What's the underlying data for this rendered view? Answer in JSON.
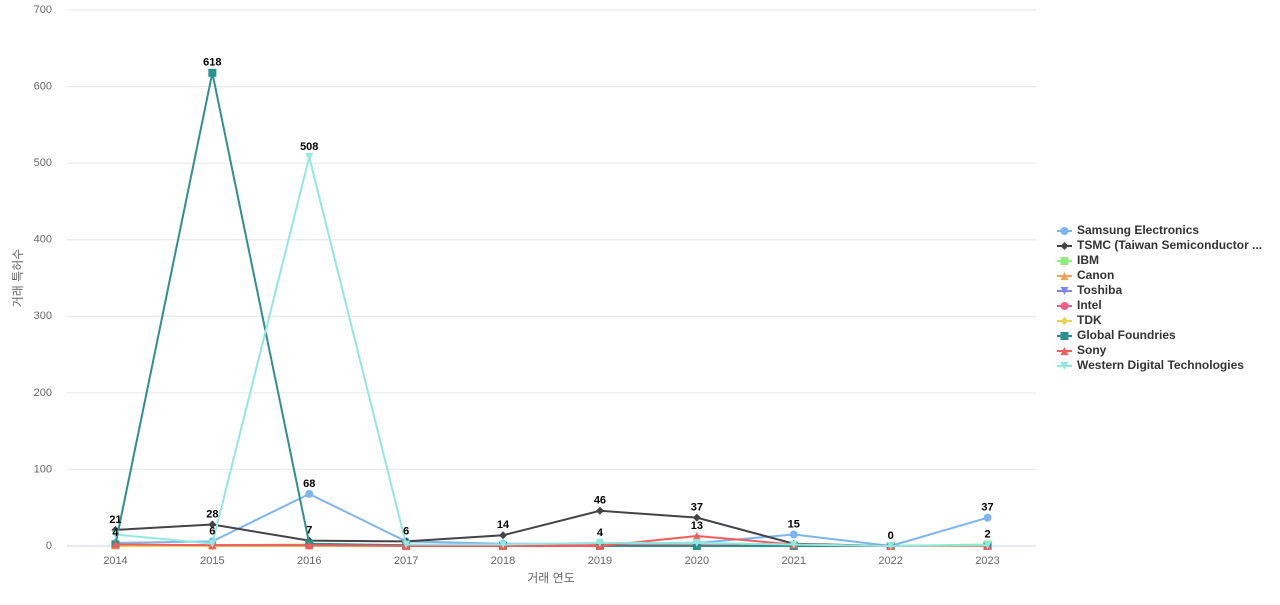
{
  "chart_data": {
    "type": "line",
    "x_label": "거래 연도",
    "y_label": "거래 특허수",
    "categories": [
      "2014",
      "2015",
      "2016",
      "2017",
      "2018",
      "2019",
      "2020",
      "2021",
      "2022",
      "2023"
    ],
    "ylim": [
      0,
      700
    ],
    "yticks": [
      0,
      100,
      200,
      300,
      400,
      500,
      600,
      700
    ],
    "grid": true,
    "legend": "right",
    "series": [
      {
        "name": "Samsung Electronics",
        "color": "#7cb5ec",
        "marker": "circle",
        "values": [
          4,
          6,
          68,
          6,
          3,
          3,
          4,
          15,
          0,
          37
        ]
      },
      {
        "name": "TSMC (Taiwan Semiconductor ...",
        "color": "#434348",
        "marker": "diamond",
        "values": [
          21,
          28,
          7,
          6,
          14,
          46,
          37,
          3,
          0,
          1
        ]
      },
      {
        "name": "IBM",
        "color": "#90ed7d",
        "marker": "square",
        "values": [
          1,
          1,
          2,
          1,
          1,
          1,
          1,
          1,
          0,
          2
        ]
      },
      {
        "name": "Canon",
        "color": "#f7a35c",
        "marker": "triangle",
        "values": [
          1,
          1,
          1,
          0,
          0,
          1,
          0,
          0,
          0,
          0
        ]
      },
      {
        "name": "Toshiba",
        "color": "#8085e9",
        "marker": "triangle-down",
        "values": [
          0,
          0,
          1,
          0,
          0,
          0,
          0,
          0,
          0,
          0
        ]
      },
      {
        "name": "Intel",
        "color": "#f15c80",
        "marker": "circle",
        "values": [
          1,
          1,
          1,
          1,
          0,
          1,
          1,
          0,
          0,
          0
        ]
      },
      {
        "name": "TDK",
        "color": "#e4d354",
        "marker": "diamond",
        "values": [
          0,
          0,
          0,
          0,
          0,
          0,
          0,
          0,
          0,
          0
        ]
      },
      {
        "name": "Global Foundries",
        "color": "#2b908f",
        "marker": "square",
        "values": [
          2,
          618,
          3,
          1,
          0,
          0,
          0,
          0,
          0,
          0
        ]
      },
      {
        "name": "Sony",
        "color": "#f45b5b",
        "marker": "triangle",
        "values": [
          2,
          1,
          1,
          0,
          0,
          0,
          13,
          2,
          0,
          0
        ]
      },
      {
        "name": "Western Digital Technologies",
        "color": "#91e8e1",
        "marker": "triangle-down",
        "values": [
          15,
          3,
          508,
          2,
          2,
          4,
          4,
          2,
          0,
          1
        ]
      }
    ]
  }
}
